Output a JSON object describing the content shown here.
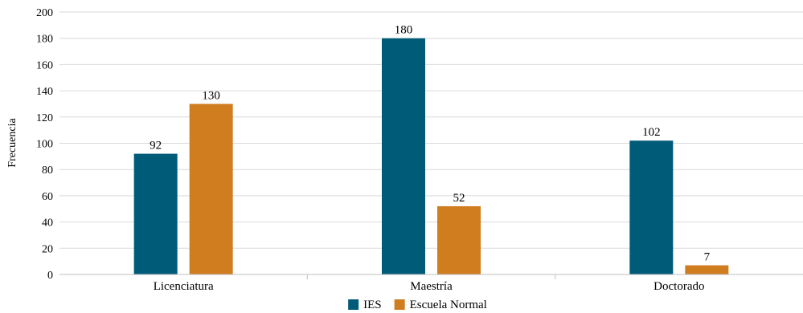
{
  "chart_data": {
    "type": "bar",
    "categories": [
      "Licenciatura",
      "Maestría",
      "Doctorado"
    ],
    "series": [
      {
        "name": "IES",
        "values": [
          92,
          180,
          102
        ],
        "color": "#005b78"
      },
      {
        "name": "Escuela Normal",
        "values": [
          130,
          52,
          7
        ],
        "color": "#d07d1f"
      }
    ],
    "xlabel": "",
    "ylabel": "Frecuencia",
    "ylim": [
      0,
      200
    ],
    "yticks": [
      0,
      20,
      40,
      60,
      80,
      100,
      120,
      140,
      160,
      180,
      200
    ],
    "grid": true,
    "legend": "bottom-center"
  }
}
